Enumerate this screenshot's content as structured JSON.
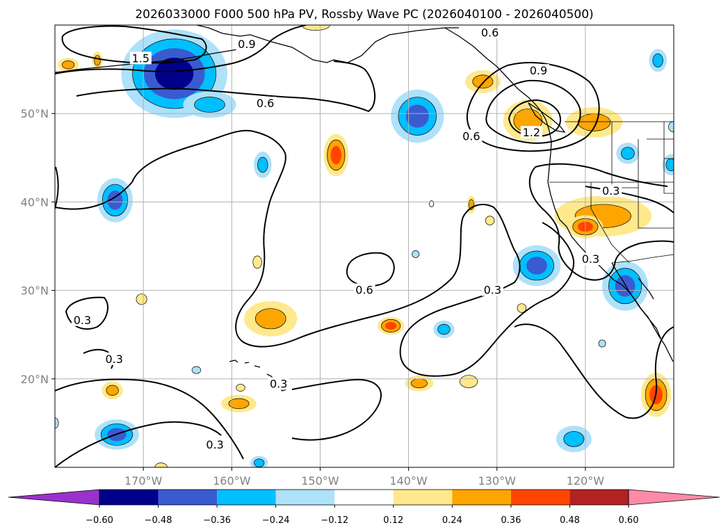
{
  "chart_data": {
    "type": "map",
    "title": "2026033000 F000 500 hPa PV, Rossby Wave PC (2026040100 - 2026040500)",
    "lon_range": [
      -180,
      -110
    ],
    "lat_range": [
      10,
      60
    ],
    "x_ticks": [
      {
        "lon": -170,
        "label": "170°W"
      },
      {
        "lon": -160,
        "label": "160°W"
      },
      {
        "lon": -150,
        "label": "150°W"
      },
      {
        "lon": -140,
        "label": "140°W"
      },
      {
        "lon": -130,
        "label": "130°W"
      },
      {
        "lon": -120,
        "label": "120°W"
      }
    ],
    "y_ticks": [
      {
        "lat": 50,
        "label": "50°N"
      },
      {
        "lat": 40,
        "label": "40°N"
      },
      {
        "lat": 30,
        "label": "30°N"
      },
      {
        "lat": 20,
        "label": "20°N"
      }
    ],
    "colorbar": {
      "levels": [
        -0.6,
        -0.48,
        -0.36,
        -0.24,
        -0.12,
        0.12,
        0.24,
        0.36,
        0.48,
        0.6
      ],
      "labels": [
        "−0.60",
        "−0.48",
        "−0.36",
        "−0.24",
        "−0.12",
        "0.12",
        "0.24",
        "0.36",
        "0.48",
        "0.60"
      ],
      "colors": [
        "#9932cc",
        "#00008b",
        "#3a5bd0",
        "#00bfff",
        "#aee1fa",
        "#ffffff",
        "#ffe98c",
        "#ffa500",
        "#ff4500",
        "#b22222",
        "#ff8aa8"
      ],
      "extend": "both"
    },
    "contour_levels": [
      0.3,
      0.6,
      0.9,
      1.2,
      1.5
    ],
    "contour_labels": [
      {
        "text": "1.5",
        "lon": -170.3,
        "lat": 56.2
      },
      {
        "text": "0.9",
        "lon": -158.3,
        "lat": 57.8
      },
      {
        "text": "0.6",
        "lon": -156.2,
        "lat": 51.1
      },
      {
        "text": "0.6",
        "lon": -130.8,
        "lat": 59.1
      },
      {
        "text": "0.9",
        "lon": -125.3,
        "lat": 54.8
      },
      {
        "text": "1.2",
        "lon": -126.1,
        "lat": 47.8
      },
      {
        "text": "0.6",
        "lon": -132.9,
        "lat": 47.4
      },
      {
        "text": "0.3",
        "lon": -117.1,
        "lat": 41.2
      },
      {
        "text": "0.3",
        "lon": -119.4,
        "lat": 33.5
      },
      {
        "text": "0.6",
        "lon": -145.0,
        "lat": 30.0
      },
      {
        "text": "0.3",
        "lon": -130.5,
        "lat": 30.0
      },
      {
        "text": "0.3",
        "lon": -176.9,
        "lat": 26.6
      },
      {
        "text": "0.3",
        "lon": -173.3,
        "lat": 22.2
      },
      {
        "text": "0.3",
        "lon": -154.7,
        "lat": 19.4
      },
      {
        "text": "0.3",
        "lon": -161.9,
        "lat": 12.5
      }
    ],
    "anomaly_blobs": [
      {
        "lon": -166.5,
        "lat": 54.5,
        "rx": 6.0,
        "ry": 5.0,
        "value": -0.5
      },
      {
        "lon": -162.5,
        "lat": 51.0,
        "rx": 3.0,
        "ry": 1.5,
        "value": -0.3
      },
      {
        "lon": -173.2,
        "lat": 40.2,
        "rx": 2.0,
        "ry": 2.5,
        "value": -0.36
      },
      {
        "lon": -156.5,
        "lat": 44.2,
        "rx": 1.0,
        "ry": 1.5,
        "value": -0.3
      },
      {
        "lon": -139.0,
        "lat": 49.7,
        "rx": 3.0,
        "ry": 3.0,
        "value": -0.42
      },
      {
        "lon": -148.2,
        "lat": 45.3,
        "rx": 1.4,
        "ry": 2.4,
        "value": 0.38
      },
      {
        "lon": -131.6,
        "lat": 53.6,
        "rx": 2.0,
        "ry": 1.3,
        "value": 0.3
      },
      {
        "lon": -126.5,
        "lat": 49.2,
        "rx": 2.8,
        "ry": 2.3,
        "value": 0.32
      },
      {
        "lon": -119.0,
        "lat": 49.0,
        "rx": 3.2,
        "ry": 1.7,
        "value": 0.3
      },
      {
        "lon": -115.2,
        "lat": 45.5,
        "rx": 1.3,
        "ry": 1.2,
        "value": -0.3
      },
      {
        "lon": -110.3,
        "lat": 44.2,
        "rx": 1.0,
        "ry": 1.2,
        "value": -0.3
      },
      {
        "lon": -118.0,
        "lat": 38.4,
        "rx": 5.5,
        "ry": 2.3,
        "value": 0.32
      },
      {
        "lon": -120.0,
        "lat": 37.2,
        "rx": 2.0,
        "ry": 1.3,
        "value": 0.42
      },
      {
        "lon": -125.5,
        "lat": 32.8,
        "rx": 2.7,
        "ry": 2.3,
        "value": -0.45
      },
      {
        "lon": -115.5,
        "lat": 30.5,
        "rx": 2.6,
        "ry": 2.8,
        "value": -0.42
      },
      {
        "lon": -112.0,
        "lat": 18.2,
        "rx": 1.7,
        "ry": 2.5,
        "value": 0.42
      },
      {
        "lon": -111.8,
        "lat": 56.0,
        "rx": 1.0,
        "ry": 1.3,
        "value": -0.3
      },
      {
        "lon": -178.5,
        "lat": 55.5,
        "rx": 1.2,
        "ry": 0.8,
        "value": 0.24
      },
      {
        "lon": -175.2,
        "lat": 56.0,
        "rx": 0.6,
        "ry": 1.0,
        "value": 0.26
      },
      {
        "lon": -155.6,
        "lat": 26.8,
        "rx": 3.0,
        "ry": 2.0,
        "value": 0.32
      },
      {
        "lon": -142.0,
        "lat": 26.0,
        "rx": 1.5,
        "ry": 1.0,
        "value": 0.38
      },
      {
        "lon": -136.0,
        "lat": 25.6,
        "rx": 1.2,
        "ry": 1.0,
        "value": -0.3
      },
      {
        "lon": -138.8,
        "lat": 19.5,
        "rx": 1.6,
        "ry": 0.9,
        "value": 0.26
      },
      {
        "lon": -133.2,
        "lat": 19.7,
        "rx": 1.0,
        "ry": 0.7,
        "value": 0.22
      },
      {
        "lon": -173.5,
        "lat": 18.7,
        "rx": 1.2,
        "ry": 1.0,
        "value": 0.3
      },
      {
        "lon": -159.2,
        "lat": 17.2,
        "rx": 2.0,
        "ry": 1.0,
        "value": 0.3
      },
      {
        "lon": -173.0,
        "lat": 13.7,
        "rx": 2.5,
        "ry": 1.7,
        "value": -0.44
      },
      {
        "lon": -121.3,
        "lat": 13.2,
        "rx": 2.0,
        "ry": 1.5,
        "value": -0.3
      },
      {
        "lon": -156.9,
        "lat": 10.5,
        "rx": 1.0,
        "ry": 0.8,
        "value": -0.28
      },
      {
        "lon": -168.0,
        "lat": 10.0,
        "rx": 0.7,
        "ry": 0.5,
        "value": 0.2
      },
      {
        "lon": -150.5,
        "lat": 60.0,
        "rx": 1.6,
        "ry": 0.6,
        "value": 0.2
      },
      {
        "lon": -132.9,
        "lat": 39.7,
        "rx": 0.5,
        "ry": 1.0,
        "value": 0.3
      },
      {
        "lon": -137.4,
        "lat": 39.8,
        "rx": 0.5,
        "ry": 0.7,
        "value": 0.0
      },
      {
        "lon": -170.2,
        "lat": 29.0,
        "rx": 0.6,
        "ry": 0.6,
        "value": 0.16
      },
      {
        "lon": -157.1,
        "lat": 33.2,
        "rx": 0.5,
        "ry": 0.7,
        "value": 0.16
      },
      {
        "lon": -127.2,
        "lat": 28.0,
        "rx": 0.5,
        "ry": 0.5,
        "value": 0.18
      },
      {
        "lon": -130.8,
        "lat": 37.9,
        "rx": 0.5,
        "ry": 0.5,
        "value": 0.18
      },
      {
        "lon": -118.1,
        "lat": 24.0,
        "rx": 0.4,
        "ry": 0.4,
        "value": -0.2
      },
      {
        "lon": -139.2,
        "lat": 34.1,
        "rx": 0.4,
        "ry": 0.4,
        "value": -0.2
      },
      {
        "lon": -164.0,
        "lat": 21.0,
        "rx": 0.5,
        "ry": 0.4,
        "value": -0.22
      },
      {
        "lon": -159.0,
        "lat": 19.0,
        "rx": 0.5,
        "ry": 0.4,
        "value": 0.18
      },
      {
        "lon": -180.0,
        "lat": 15.0,
        "rx": 0.4,
        "ry": 0.6,
        "value": -0.2
      },
      {
        "lon": -110.0,
        "lat": 48.5,
        "rx": 0.6,
        "ry": 0.6,
        "value": -0.22
      }
    ]
  }
}
